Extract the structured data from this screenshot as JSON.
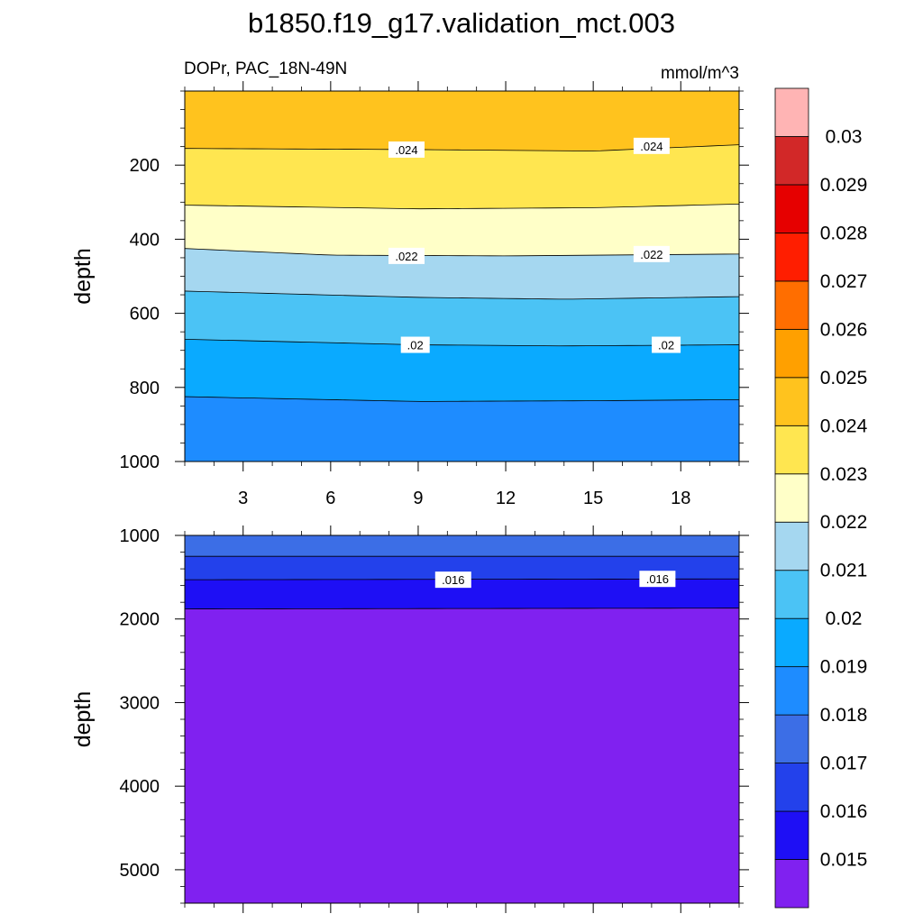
{
  "title": "b1850.f19_g17.validation_mct.003",
  "subtitle_left": "DOPr, PAC_18N-49N",
  "subtitle_right": "mmol/m^3",
  "chart_data": [
    {
      "type": "contour",
      "panel": "upper",
      "xlabel": "",
      "ylabel": "depth",
      "xlim": [
        1,
        20
      ],
      "ylim": [
        1000,
        0
      ],
      "x_ticks": [
        3,
        6,
        9,
        12,
        15,
        18
      ],
      "x_tick_labels": [
        "3",
        "6",
        "9",
        "12",
        "15",
        "18"
      ],
      "y_ticks": [
        200,
        400,
        600,
        800,
        1000
      ],
      "y_tick_labels": [
        "200",
        "400",
        "600",
        "800",
        "1000"
      ],
      "bands": [
        {
          "range": [
            0.024,
            0.025
          ],
          "color": "#ffc31e",
          "boundary_depths": [
            [
              1,
              0
            ],
            [
              20,
              0
            ]
          ]
        },
        {
          "range": [
            0.023,
            0.024
          ],
          "color": "#ffe650",
          "boundary_depths": [
            [
              1,
              155
            ],
            [
              9,
              158
            ],
            [
              15,
              162
            ],
            [
              20,
              145
            ]
          ]
        },
        {
          "range": [
            0.022,
            0.023
          ],
          "color": "#ffffc8",
          "boundary_depths": [
            [
              1,
              308
            ],
            [
              9,
              318
            ],
            [
              15,
              315
            ],
            [
              20,
              305
            ]
          ]
        },
        {
          "range": [
            0.021,
            0.022
          ],
          "color": "#a5d7f0",
          "boundary_depths": [
            [
              1,
              425
            ],
            [
              6,
              443
            ],
            [
              12,
              445
            ],
            [
              20,
              440
            ]
          ]
        },
        {
          "range": [
            0.02,
            0.021
          ],
          "color": "#4bc3f5",
          "boundary_depths": [
            [
              1,
              540
            ],
            [
              9,
              557
            ],
            [
              14,
              562
            ],
            [
              20,
              555
            ]
          ]
        },
        {
          "range": [
            0.019,
            0.02
          ],
          "color": "#0aaaff",
          "boundary_depths": [
            [
              1,
              670
            ],
            [
              9,
              685
            ],
            [
              14,
              688
            ],
            [
              20,
              685
            ]
          ]
        },
        {
          "range": [
            0.018,
            0.019
          ],
          "color": "#1e8cff",
          "boundary_depths": [
            [
              1,
              825
            ],
            [
              9,
              838
            ],
            [
              15,
              836
            ],
            [
              20,
              833
            ]
          ]
        }
      ],
      "contour_labels": [
        {
          "text": ".024",
          "x": 8.6,
          "depth": 158
        },
        {
          "text": ".024",
          "x": 17.0,
          "depth": 148
        },
        {
          "text": ".022",
          "x": 8.6,
          "depth": 445
        },
        {
          "text": ".022",
          "x": 17.0,
          "depth": 440
        },
        {
          "text": ".02",
          "x": 8.9,
          "depth": 685
        },
        {
          "text": ".02",
          "x": 17.5,
          "depth": 685
        }
      ]
    },
    {
      "type": "contour",
      "panel": "lower",
      "xlabel": "",
      "ylabel": "depth",
      "xlim": [
        1,
        20
      ],
      "ylim": [
        5400,
        1000
      ],
      "x_ticks": [
        3,
        6,
        9,
        12,
        15,
        18
      ],
      "y_ticks": [
        1000,
        2000,
        3000,
        4000,
        5000
      ],
      "y_tick_labels": [
        "1000",
        "2000",
        "3000",
        "4000",
        "5000"
      ],
      "bands": [
        {
          "range": [
            0.017,
            0.018
          ],
          "color": "#3c6ee6",
          "boundary_depths": [
            [
              1,
              1000
            ],
            [
              20,
              1000
            ]
          ]
        },
        {
          "range": [
            0.016,
            0.017
          ],
          "color": "#2341eb",
          "boundary_depths": [
            [
              1,
              1250
            ],
            [
              20,
              1250
            ]
          ]
        },
        {
          "range": [
            0.015,
            0.016
          ],
          "color": "#1e0ff5",
          "boundary_depths": [
            [
              1,
              1530
            ],
            [
              20,
              1520
            ]
          ]
        },
        {
          "range": [
            0.014,
            0.015
          ],
          "color": "#8021f0",
          "boundary_depths": [
            [
              1,
              1880
            ],
            [
              20,
              1870
            ]
          ]
        }
      ],
      "contour_labels": [
        {
          "text": ".016",
          "x": 10.2,
          "depth": 1530
        },
        {
          "text": ".016",
          "x": 17.2,
          "depth": 1520
        }
      ]
    }
  ],
  "colorbar": {
    "levels": [
      "0.015",
      "0.016",
      "0.017",
      "0.018",
      "0.019",
      "0.02",
      "0.021",
      "0.022",
      "0.023",
      "0.024",
      "0.025",
      "0.026",
      "0.027",
      "0.028",
      "0.029",
      "0.03"
    ],
    "colors": [
      "#8021f0",
      "#1e0ff5",
      "#2341eb",
      "#3c6ee6",
      "#1e8cff",
      "#0aaaff",
      "#4bc3f5",
      "#a5d7f0",
      "#ffffc8",
      "#ffe650",
      "#ffc31e",
      "#ffa000",
      "#ff6e00",
      "#ff1e00",
      "#e60000",
      "#d22828",
      "#ffb4b4"
    ]
  }
}
